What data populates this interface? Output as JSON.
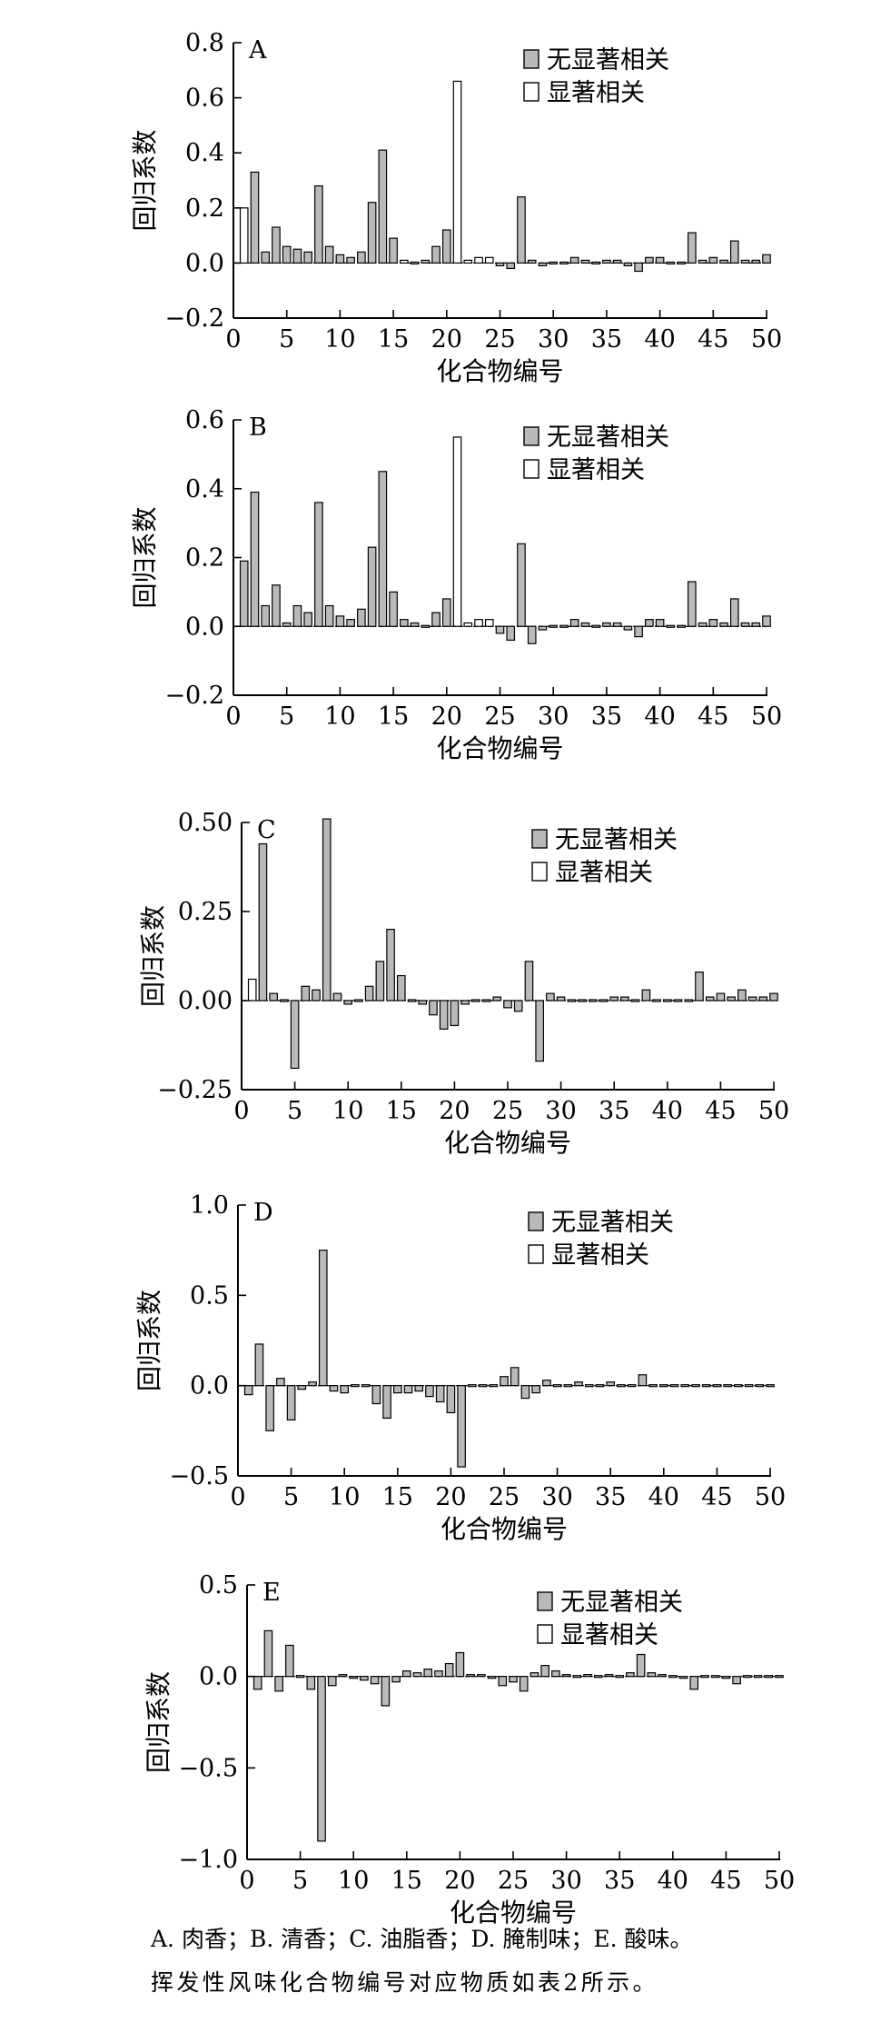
{
  "legend": {
    "not_significant": "无显著相关",
    "significant": "显著相关"
  },
  "colors": {
    "not_significant": "#b9b9b9",
    "significant": "#ffffff",
    "stroke": "#000000"
  },
  "caption": {
    "line1": "A. 肉香；B. 清香；C. 油脂香；D. 腌制味；E. 酸味。",
    "line2": "挥发性风味化合物编号对应物质如表2所示。"
  },
  "chart_data": [
    {
      "panel": "A",
      "type": "bar",
      "xlabel": "化合物编号",
      "ylabel": "回归系数",
      "xlim": [
        0,
        50
      ],
      "ylim": [
        -0.2,
        0.8
      ],
      "yticks": [
        -0.2,
        0.0,
        0.2,
        0.4,
        0.6,
        0.8
      ],
      "ytick_labels": [
        "−0.2",
        "0.0",
        "0.2",
        "0.4",
        "0.6",
        "0.8"
      ],
      "xticks": [
        0,
        5,
        10,
        15,
        20,
        25,
        30,
        35,
        40,
        45,
        50
      ],
      "legend_position": "top-right",
      "compounds": [
        1,
        2,
        3,
        4,
        5,
        6,
        7,
        8,
        9,
        10,
        11,
        12,
        13,
        14,
        15,
        16,
        17,
        18,
        19,
        20,
        21,
        22,
        23,
        24,
        25,
        26,
        27,
        28,
        29,
        30,
        31,
        32,
        33,
        34,
        35,
        36,
        37,
        38,
        39,
        40,
        41,
        42,
        43,
        44,
        45,
        46,
        47,
        48,
        49,
        50
      ],
      "values": [
        0.2,
        0.33,
        0.04,
        0.13,
        0.06,
        0.05,
        0.04,
        0.28,
        0.06,
        0.03,
        0.02,
        0.04,
        0.22,
        0.41,
        0.09,
        0.01,
        0.005,
        0.01,
        0.06,
        0.12,
        0.66,
        0.01,
        0.02,
        0.02,
        -0.01,
        -0.02,
        0.24,
        0.01,
        -0.01,
        -0.005,
        0.005,
        0.02,
        0.01,
        -0.005,
        0.01,
        0.01,
        -0.01,
        -0.03,
        0.02,
        0.02,
        0.005,
        0.005,
        0.11,
        0.01,
        0.02,
        0.01,
        0.08,
        0.01,
        0.01,
        0.03
      ],
      "significant": [
        true,
        false,
        false,
        false,
        false,
        false,
        false,
        false,
        false,
        false,
        false,
        false,
        false,
        false,
        false,
        true,
        false,
        false,
        false,
        false,
        true,
        true,
        true,
        true,
        false,
        false,
        false,
        false,
        false,
        false,
        false,
        false,
        false,
        false,
        false,
        false,
        false,
        false,
        false,
        false,
        false,
        false,
        false,
        false,
        false,
        false,
        false,
        false,
        false,
        false
      ]
    },
    {
      "panel": "B",
      "type": "bar",
      "xlabel": "化合物编号",
      "ylabel": "回归系数",
      "xlim": [
        0,
        50
      ],
      "ylim": [
        -0.2,
        0.6
      ],
      "yticks": [
        -0.2,
        0.0,
        0.2,
        0.4,
        0.6
      ],
      "ytick_labels": [
        "−0.2",
        "0.0",
        "0.2",
        "0.4",
        "0.6"
      ],
      "xticks": [
        0,
        5,
        10,
        15,
        20,
        25,
        30,
        35,
        40,
        45,
        50
      ],
      "legend_position": "top-right",
      "compounds": [
        1,
        2,
        3,
        4,
        5,
        6,
        7,
        8,
        9,
        10,
        11,
        12,
        13,
        14,
        15,
        16,
        17,
        18,
        19,
        20,
        21,
        22,
        23,
        24,
        25,
        26,
        27,
        28,
        29,
        30,
        31,
        32,
        33,
        34,
        35,
        36,
        37,
        38,
        39,
        40,
        41,
        42,
        43,
        44,
        45,
        46,
        47,
        48,
        49,
        50
      ],
      "values": [
        0.19,
        0.39,
        0.06,
        0.12,
        0.01,
        0.06,
        0.04,
        0.36,
        0.06,
        0.03,
        0.02,
        0.05,
        0.23,
        0.45,
        0.1,
        0.02,
        0.01,
        0.005,
        0.04,
        0.08,
        0.55,
        0.01,
        0.02,
        0.02,
        -0.02,
        -0.04,
        0.24,
        -0.05,
        -0.01,
        -0.005,
        0.005,
        0.02,
        0.01,
        -0.005,
        0.01,
        0.01,
        -0.01,
        -0.03,
        0.02,
        0.02,
        0.005,
        0.005,
        0.13,
        0.01,
        0.02,
        0.01,
        0.08,
        0.01,
        0.01,
        0.03
      ],
      "significant": [
        false,
        false,
        false,
        false,
        false,
        false,
        false,
        false,
        false,
        false,
        false,
        false,
        false,
        false,
        false,
        false,
        false,
        false,
        false,
        false,
        true,
        true,
        true,
        true,
        false,
        false,
        false,
        false,
        false,
        false,
        false,
        false,
        false,
        false,
        false,
        false,
        false,
        false,
        false,
        false,
        false,
        false,
        false,
        false,
        false,
        false,
        false,
        false,
        false,
        false
      ]
    },
    {
      "panel": "C",
      "type": "bar",
      "xlabel": "化合物编号",
      "ylabel": "回归系数",
      "xlim": [
        0,
        50
      ],
      "ylim": [
        -0.25,
        0.5
      ],
      "yticks": [
        -0.25,
        0.0,
        0.25,
        0.5
      ],
      "ytick_labels": [
        "−0.25",
        "0.00",
        "0.25",
        "0.50"
      ],
      "xticks": [
        0,
        5,
        10,
        15,
        20,
        25,
        30,
        35,
        40,
        45,
        50
      ],
      "legend_position": "top-right",
      "compounds": [
        1,
        2,
        3,
        4,
        5,
        6,
        7,
        8,
        9,
        10,
        11,
        12,
        13,
        14,
        15,
        16,
        17,
        18,
        19,
        20,
        21,
        22,
        23,
        24,
        25,
        26,
        27,
        28,
        29,
        30,
        31,
        32,
        33,
        34,
        35,
        36,
        37,
        38,
        39,
        40,
        41,
        42,
        43,
        44,
        45,
        46,
        47,
        48,
        49,
        50
      ],
      "values": [
        0.06,
        0.44,
        0.02,
        0.005,
        -0.19,
        0.04,
        0.03,
        0.51,
        0.02,
        -0.01,
        0.005,
        0.04,
        0.11,
        0.2,
        0.07,
        0.005,
        -0.01,
        -0.04,
        -0.08,
        -0.07,
        -0.01,
        0.005,
        0.005,
        0.01,
        -0.02,
        -0.03,
        0.11,
        -0.17,
        0.02,
        0.01,
        0.005,
        0.005,
        0.005,
        0.005,
        0.01,
        0.01,
        0.005,
        0.03,
        0.005,
        0.005,
        0.005,
        0.005,
        0.08,
        0.01,
        0.02,
        0.01,
        0.03,
        0.01,
        0.01,
        0.02
      ],
      "significant": [
        true,
        false,
        false,
        false,
        false,
        false,
        false,
        false,
        false,
        false,
        false,
        false,
        false,
        false,
        false,
        false,
        false,
        false,
        false,
        false,
        false,
        false,
        false,
        false,
        false,
        false,
        false,
        false,
        false,
        false,
        false,
        false,
        false,
        false,
        false,
        false,
        false,
        false,
        false,
        false,
        false,
        false,
        false,
        false,
        false,
        false,
        false,
        false,
        false,
        false
      ]
    },
    {
      "panel": "D",
      "type": "bar",
      "xlabel": "化合物编号",
      "ylabel": "回归系数",
      "xlim": [
        0,
        50
      ],
      "ylim": [
        -0.5,
        1.0
      ],
      "yticks": [
        -0.5,
        0.0,
        0.5,
        1.0
      ],
      "ytick_labels": [
        "−0.5",
        "0.0",
        "0.5",
        "1.0"
      ],
      "xticks": [
        0,
        5,
        10,
        15,
        20,
        25,
        30,
        35,
        40,
        45,
        50
      ],
      "legend_position": "top-right",
      "compounds": [
        1,
        2,
        3,
        4,
        5,
        6,
        7,
        8,
        9,
        10,
        11,
        12,
        13,
        14,
        15,
        16,
        17,
        18,
        19,
        20,
        21,
        22,
        23,
        24,
        25,
        26,
        27,
        28,
        29,
        30,
        31,
        32,
        33,
        34,
        35,
        36,
        37,
        38,
        39,
        40,
        41,
        42,
        43,
        44,
        45,
        46,
        47,
        48,
        49,
        50
      ],
      "values": [
        -0.05,
        0.23,
        -0.25,
        0.04,
        -0.19,
        -0.02,
        0.02,
        0.75,
        -0.03,
        -0.04,
        0.005,
        0.005,
        -0.1,
        -0.18,
        -0.04,
        -0.04,
        -0.03,
        -0.06,
        -0.09,
        -0.15,
        -0.45,
        0.005,
        -0.01,
        0.005,
        0.05,
        0.1,
        -0.07,
        -0.04,
        0.03,
        0.01,
        0.005,
        0.02,
        0.01,
        0.01,
        0.02,
        0.01,
        0.005,
        0.06,
        -0.01,
        0.005,
        0.005,
        0.005,
        -0.01,
        0.005,
        0.005,
        0.005,
        0.005,
        0.005,
        0.005,
        0.005
      ],
      "significant": [
        false,
        false,
        false,
        false,
        false,
        false,
        false,
        false,
        false,
        false,
        false,
        false,
        false,
        false,
        false,
        false,
        false,
        false,
        false,
        false,
        false,
        false,
        false,
        false,
        false,
        false,
        false,
        false,
        false,
        false,
        false,
        false,
        false,
        false,
        false,
        false,
        false,
        false,
        false,
        false,
        false,
        false,
        false,
        false,
        false,
        false,
        false,
        false,
        false,
        false
      ]
    },
    {
      "panel": "E",
      "type": "bar",
      "xlabel": "化合物编号",
      "ylabel": "回归系数",
      "xlim": [
        0,
        50
      ],
      "ylim": [
        -1.0,
        0.5
      ],
      "yticks": [
        -1.0,
        -0.5,
        0.0,
        0.5
      ],
      "ytick_labels": [
        "−1.0",
        "−0.5",
        "0.0",
        "0.5"
      ],
      "xticks": [
        0,
        5,
        10,
        15,
        20,
        25,
        30,
        35,
        40,
        45,
        50
      ],
      "legend_position": "top-right",
      "compounds": [
        1,
        2,
        3,
        4,
        5,
        6,
        7,
        8,
        9,
        10,
        11,
        12,
        13,
        14,
        15,
        16,
        17,
        18,
        19,
        20,
        21,
        22,
        23,
        24,
        25,
        26,
        27,
        28,
        29,
        30,
        31,
        32,
        33,
        34,
        35,
        36,
        37,
        38,
        39,
        40,
        41,
        42,
        43,
        44,
        45,
        46,
        47,
        48,
        49,
        50
      ],
      "values": [
        -0.07,
        0.25,
        -0.08,
        0.17,
        0.005,
        -0.07,
        -0.9,
        -0.05,
        0.01,
        -0.01,
        -0.02,
        -0.04,
        -0.16,
        -0.03,
        0.03,
        0.02,
        0.04,
        0.03,
        0.07,
        0.13,
        0.01,
        0.01,
        -0.01,
        -0.05,
        -0.03,
        -0.08,
        0.02,
        0.06,
        0.03,
        0.01,
        0.005,
        0.01,
        0.005,
        0.01,
        0.005,
        0.02,
        0.12,
        0.02,
        0.01,
        0.005,
        -0.01,
        -0.07,
        0.005,
        0.005,
        -0.01,
        -0.04,
        0.005,
        0.005,
        0.005,
        0.005
      ],
      "significant": [
        false,
        false,
        false,
        false,
        false,
        false,
        false,
        false,
        false,
        false,
        false,
        false,
        false,
        false,
        false,
        false,
        false,
        false,
        false,
        false,
        false,
        false,
        false,
        false,
        false,
        false,
        false,
        false,
        false,
        false,
        false,
        false,
        false,
        false,
        false,
        false,
        false,
        false,
        false,
        false,
        false,
        false,
        false,
        false,
        false,
        false,
        false,
        false,
        false,
        false
      ]
    }
  ]
}
